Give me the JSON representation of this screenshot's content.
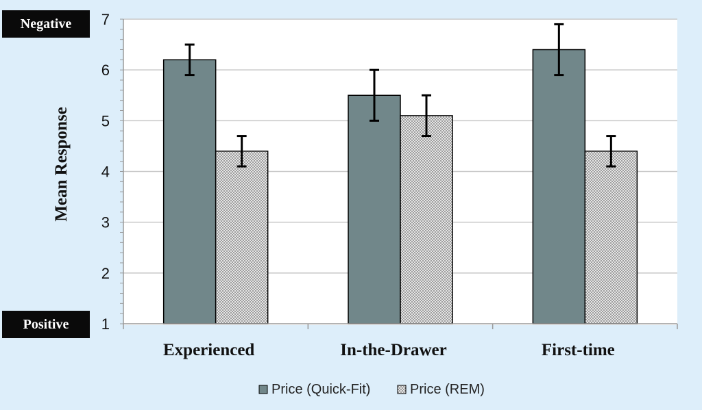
{
  "colors": {
    "background": "#ddeefa",
    "plot_area": "#ffffff",
    "series1": "#71878a",
    "series2": "#d8d8d8",
    "gridline": "#c8c8c8",
    "tag_bg": "#0a0a0a"
  },
  "annotations": {
    "negative": "Negative",
    "positive": "Positive"
  },
  "chart_data": {
    "type": "bar",
    "title": "",
    "xlabel": "",
    "ylabel": "Mean Response",
    "ylim": [
      1,
      7
    ],
    "yticks": [
      1,
      2,
      3,
      4,
      5,
      6,
      7
    ],
    "grid": true,
    "legend_position": "bottom",
    "categories": [
      "Experienced",
      "In-the-Drawer",
      "First-time"
    ],
    "series": [
      {
        "name": "Price (Quick-Fit)",
        "values": [
          6.2,
          5.5,
          6.4
        ],
        "error": [
          0.3,
          0.5,
          0.5
        ],
        "pattern": "solid"
      },
      {
        "name": "Price (REM)",
        "values": [
          4.4,
          5.1,
          4.4
        ],
        "error": [
          0.3,
          0.4,
          0.3
        ],
        "pattern": "dotted"
      }
    ]
  }
}
